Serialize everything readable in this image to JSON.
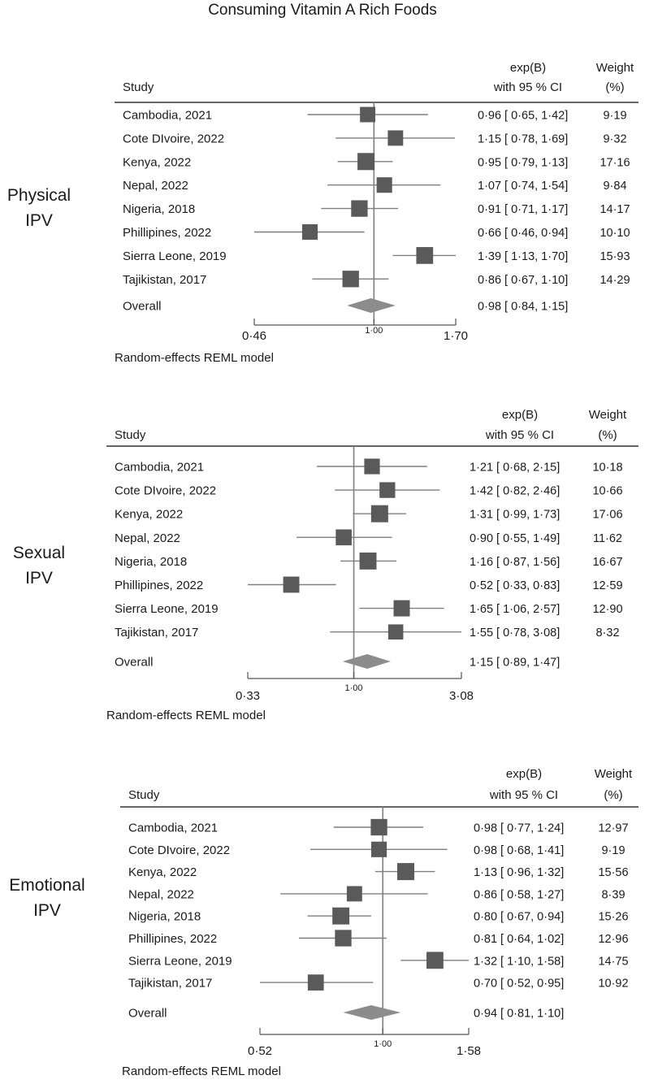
{
  "title": "Consuming Vitamin A Rich Foods",
  "colors": {
    "marker": "#5a5a5a",
    "ci_line": "#7f7f7f",
    "diamond": "#8c8c8c",
    "ref_line": "#808080",
    "text": "#1a1a1a"
  },
  "chart_data": [
    {
      "type": "forest",
      "panel_label": [
        "Physical",
        "IPV"
      ],
      "header": {
        "study": "Study",
        "effect": [
          "exp(B)",
          "with 95 % CI"
        ],
        "weight": [
          "Weight",
          "(%)"
        ]
      },
      "studies": [
        "Cambodia, 2021",
        "Cote DIvoire, 2022",
        "Kenya, 2022",
        "Nepal, 2022",
        "Nigeria, 2018",
        "Phillipines, 2022",
        "Sierra Leone, 2019",
        "Tajikistan, 2017"
      ],
      "estimates": [
        0.96,
        1.15,
        0.95,
        1.07,
        0.91,
        0.66,
        1.39,
        0.86
      ],
      "ci_lower": [
        0.65,
        0.78,
        0.79,
        0.74,
        0.71,
        0.46,
        1.13,
        0.67
      ],
      "ci_upper": [
        1.42,
        1.69,
        1.13,
        1.54,
        1.17,
        0.94,
        1.7,
        1.1
      ],
      "estimate_text": [
        "0·96 [ 0·65,  1·42]",
        "1·15 [ 0·78,  1·69]",
        "0·95 [ 0·79,  1·13]",
        "1·07 [ 0·74,  1·54]",
        "0·91 [ 0·71,  1·17]",
        "0·66 [ 0·46,  0·94]",
        "1·39 [ 1·13,  1·70]",
        "0·86 [ 0·67,  1·10]"
      ],
      "weights": [
        9.19,
        9.32,
        17.16,
        9.84,
        14.17,
        10.1,
        15.93,
        14.29
      ],
      "weight_text": [
        "9·19",
        "9·32",
        "17·16",
        "9·84",
        "14·17",
        "10·10",
        "15·93",
        "14·29"
      ],
      "overall": {
        "label": "Overall",
        "estimate": 0.98,
        "ci_lower": 0.84,
        "ci_upper": 1.15,
        "text": "0·98 [ 0·84,  1·15]"
      },
      "x_scale": "log",
      "xlim": [
        0.46,
        1.7
      ],
      "ticks": [
        {
          "value": 0.46,
          "label": "0·46"
        },
        {
          "value": 1.0,
          "label": "1·00"
        },
        {
          "value": 1.7,
          "label": "1·70"
        }
      ],
      "reference": 1.0,
      "model": "Random-effects REML model"
    },
    {
      "type": "forest",
      "panel_label": [
        "Sexual",
        "IPV"
      ],
      "header": {
        "study": "Study",
        "effect": [
          "exp(B)",
          "with 95 % CI"
        ],
        "weight": [
          "Weight",
          "(%)"
        ]
      },
      "studies": [
        "Cambodia, 2021",
        "Cote DIvoire, 2022",
        "Kenya, 2022",
        "Nepal, 2022",
        "Nigeria, 2018",
        "Phillipines, 2022",
        "Sierra Leone, 2019",
        "Tajikistan, 2017"
      ],
      "estimates": [
        1.21,
        1.42,
        1.31,
        0.9,
        1.16,
        0.52,
        1.65,
        1.55
      ],
      "ci_lower": [
        0.68,
        0.82,
        0.99,
        0.55,
        0.87,
        0.33,
        1.06,
        0.78
      ],
      "ci_upper": [
        2.15,
        2.46,
        1.73,
        1.49,
        1.56,
        0.83,
        2.57,
        3.08
      ],
      "estimate_text": [
        "1·21 [ 0·68,  2·15]",
        "1·42 [ 0·82,  2·46]",
        "1·31 [ 0·99,  1·73]",
        "0·90 [ 0·55,  1·49]",
        "1·16 [ 0·87,  1·56]",
        "0·52 [ 0·33,  0·83]",
        "1·65 [ 1·06,  2·57]",
        "1·55 [ 0·78,  3·08]"
      ],
      "weights": [
        10.18,
        10.66,
        17.06,
        11.62,
        16.67,
        12.59,
        12.9,
        8.32
      ],
      "weight_text": [
        "10·18",
        "10·66",
        "17·06",
        "11·62",
        "16·67",
        "12·59",
        "12·90",
        "8·32"
      ],
      "overall": {
        "label": "Overall",
        "estimate": 1.15,
        "ci_lower": 0.89,
        "ci_upper": 1.47,
        "text": "1·15 [ 0·89,  1·47]"
      },
      "x_scale": "log",
      "xlim": [
        0.33,
        3.08
      ],
      "ticks": [
        {
          "value": 0.33,
          "label": "0·33"
        },
        {
          "value": 1.0,
          "label": "1·00"
        },
        {
          "value": 3.08,
          "label": "3·08"
        }
      ],
      "reference": 1.0,
      "model": "Random-effects REML model"
    },
    {
      "type": "forest",
      "panel_label": [
        "Emotional",
        "IPV"
      ],
      "header": {
        "study": "Study",
        "effect": [
          "exp(B)",
          "with 95 % CI"
        ],
        "weight": [
          "Weight",
          "(%)"
        ]
      },
      "studies": [
        "Cambodia, 2021",
        "Cote DIvoire, 2022",
        "Kenya, 2022",
        "Nepal, 2022",
        "Nigeria, 2018",
        "Phillipines, 2022",
        "Sierra Leone, 2019",
        "Tajikistan, 2017"
      ],
      "estimates": [
        0.98,
        0.98,
        1.13,
        0.86,
        0.8,
        0.81,
        1.32,
        0.7
      ],
      "ci_lower": [
        0.77,
        0.68,
        0.96,
        0.58,
        0.67,
        0.64,
        1.1,
        0.52
      ],
      "ci_upper": [
        1.24,
        1.41,
        1.32,
        1.27,
        0.94,
        1.02,
        1.58,
        0.95
      ],
      "estimate_text": [
        "0·98 [ 0·77,  1·24]",
        "0·98 [ 0·68,  1·41]",
        "1·13 [ 0·96,  1·32]",
        "0·86 [ 0·58,  1·27]",
        "0·80 [ 0·67,  0·94]",
        "0·81 [ 0·64,  1·02]",
        "1·32 [ 1·10,  1·58]",
        "0·70 [ 0·52,  0·95]"
      ],
      "weights": [
        12.97,
        9.19,
        15.56,
        8.39,
        15.26,
        12.96,
        14.75,
        10.92
      ],
      "weight_text": [
        "12·97",
        "9·19",
        "15·56",
        "8·39",
        "15·26",
        "12·96",
        "14·75",
        "10·92"
      ],
      "overall": {
        "label": "Overall",
        "estimate": 0.94,
        "ci_lower": 0.81,
        "ci_upper": 1.1,
        "text": "0·94 [ 0·81,  1·10]"
      },
      "x_scale": "log",
      "xlim": [
        0.52,
        1.58
      ],
      "ticks": [
        {
          "value": 0.52,
          "label": "0·52"
        },
        {
          "value": 1.0,
          "label": "1·00"
        },
        {
          "value": 1.58,
          "label": "1·58"
        }
      ],
      "reference": 1.0,
      "model": "Random-effects REML model"
    }
  ]
}
